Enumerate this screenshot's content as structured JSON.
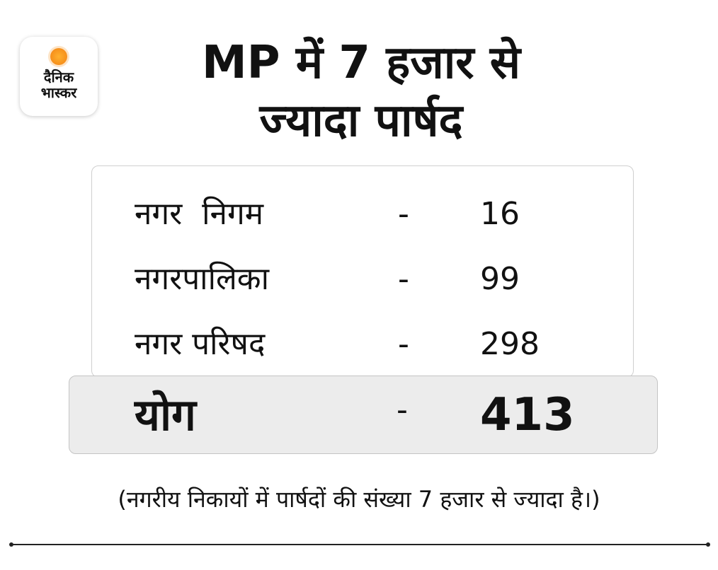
{
  "logo": {
    "line1": "दैनिक",
    "line2": "भास्कर",
    "sun_color": "#f7941d"
  },
  "title": {
    "line1": "MP में 7 हजार से",
    "line2": "ज्यादा पार्षद"
  },
  "table": {
    "rows": [
      {
        "label": "नगर  निगम",
        "dash": "-",
        "value": "16"
      },
      {
        "label": "नगरपालिका",
        "dash": "-",
        "value": "99"
      },
      {
        "label": "नगर परिषद",
        "dash": "-",
        "value": "298"
      }
    ],
    "total": {
      "label": "योग",
      "dash": "-",
      "value": "413"
    }
  },
  "footnote": "(नगरीय निकायों में पार्षदों की संख्या 7 हजार से ज्यादा है।)",
  "colors": {
    "total_background": "#ececec",
    "border": "#cfcfcf"
  }
}
